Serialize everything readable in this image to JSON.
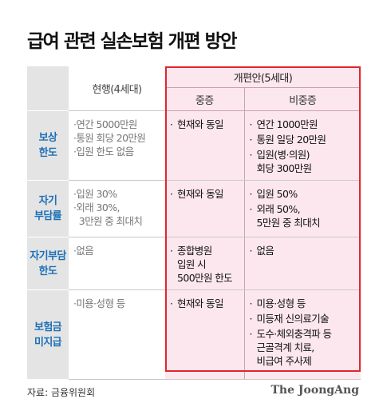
{
  "title": "급여 관련 실손보험 개편 방안",
  "header": {
    "current": "현행(4세대)",
    "proposal": "개편안(5세대)",
    "heavy": "중증",
    "nonheavy": "비중증"
  },
  "rows": [
    {
      "category": [
        "보상",
        "한도"
      ],
      "current": [
        "연간 5000만원",
        "통원 회당 20만원",
        "입원 한도 없음"
      ],
      "heavy": [
        [
          "현재와 동일"
        ]
      ],
      "nonheavy": [
        [
          "연간 1000만원"
        ],
        [
          "통원 일당 20만원"
        ],
        [
          "입원(병·의원)",
          "회당 300만원"
        ]
      ]
    },
    {
      "category": [
        "자기",
        "부담률"
      ],
      "current": [
        "입원 30%",
        "외래 30%,",
        "3만원 중 최대치"
      ],
      "heavy": [
        [
          "현재와 동일"
        ]
      ],
      "nonheavy": [
        [
          "입원 50%"
        ],
        [
          "외래 50%,",
          "5만원 중 최대치"
        ]
      ]
    },
    {
      "category": [
        "자기부담",
        "한도"
      ],
      "current": [
        "없음"
      ],
      "heavy": [
        [
          "종합병원",
          "입원 시",
          "500만원 한도"
        ]
      ],
      "nonheavy": [
        [
          "없음"
        ]
      ]
    },
    {
      "category": [
        "보험금",
        "미지급"
      ],
      "current": [
        "미용·성형 등"
      ],
      "heavy": [
        [
          "현재와 동일"
        ]
      ],
      "nonheavy": [
        [
          "미용·성형 등"
        ],
        [
          "미등재 신의료기술"
        ],
        [
          "도수·체외충격파 등",
          "근골격계 치료,",
          "비급여 주사제"
        ]
      ]
    }
  ],
  "source": "자료: 금융위원회",
  "brand": "The JoongAng",
  "colors": {
    "accent": "#1b6fb8",
    "highlight_border": "#e0262c",
    "highlight_fill": "#fde7ee"
  }
}
